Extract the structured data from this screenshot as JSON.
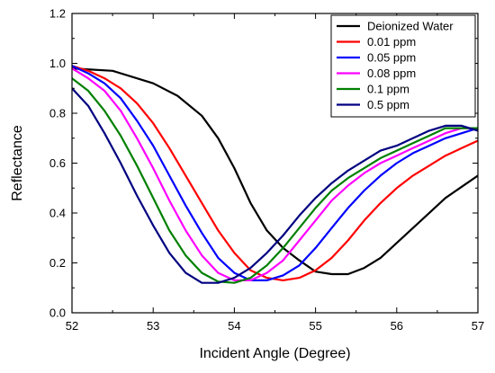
{
  "chart_data": {
    "type": "line",
    "xlabel": "Incident Angle (Degree)",
    "ylabel": "Reflectance",
    "xlim": [
      52,
      57
    ],
    "ylim": [
      0,
      1.2
    ],
    "x_ticks": [
      "52",
      "53",
      "54",
      "55",
      "56",
      "57"
    ],
    "y_ticks": [
      "0.0",
      "0.2",
      "0.4",
      "0.6",
      "0.8",
      "1.0",
      "1.2"
    ],
    "grid": false,
    "legend_position": "top-right",
    "series": [
      {
        "name": "Deionized Water",
        "color": "#000000",
        "x": [
          52.0,
          52.5,
          53.0,
          53.3,
          53.6,
          53.8,
          54.0,
          54.2,
          54.4,
          54.6,
          54.8,
          55.0,
          55.2,
          55.4,
          55.6,
          55.8,
          56.0,
          56.3,
          56.6,
          57.0
        ],
        "y": [
          0.98,
          0.97,
          0.92,
          0.87,
          0.79,
          0.7,
          0.58,
          0.44,
          0.33,
          0.26,
          0.21,
          0.165,
          0.155,
          0.155,
          0.18,
          0.22,
          0.28,
          0.37,
          0.46,
          0.55
        ]
      },
      {
        "name": "0.01 ppm",
        "color": "#ff0000",
        "x": [
          52.0,
          52.2,
          52.4,
          52.6,
          52.8,
          53.0,
          53.2,
          53.4,
          53.6,
          53.8,
          54.0,
          54.2,
          54.4,
          54.6,
          54.8,
          55.0,
          55.2,
          55.4,
          55.6,
          55.8,
          56.0,
          56.2,
          56.4,
          56.6,
          56.8,
          57.0
        ],
        "y": [
          0.99,
          0.97,
          0.94,
          0.9,
          0.84,
          0.76,
          0.66,
          0.55,
          0.44,
          0.33,
          0.24,
          0.17,
          0.14,
          0.13,
          0.14,
          0.17,
          0.22,
          0.29,
          0.37,
          0.44,
          0.5,
          0.55,
          0.59,
          0.63,
          0.66,
          0.69
        ]
      },
      {
        "name": "0.05 ppm",
        "color": "#0000ff",
        "x": [
          52.0,
          52.2,
          52.4,
          52.6,
          52.8,
          53.0,
          53.2,
          53.4,
          53.6,
          53.8,
          54.0,
          54.2,
          54.4,
          54.6,
          54.8,
          55.0,
          55.2,
          55.4,
          55.6,
          55.8,
          56.0,
          56.2,
          56.4,
          56.6,
          56.8,
          57.0
        ],
        "y": [
          0.99,
          0.96,
          0.92,
          0.86,
          0.77,
          0.67,
          0.55,
          0.43,
          0.32,
          0.22,
          0.16,
          0.13,
          0.13,
          0.15,
          0.19,
          0.26,
          0.34,
          0.42,
          0.49,
          0.55,
          0.6,
          0.64,
          0.67,
          0.7,
          0.72,
          0.74
        ]
      },
      {
        "name": "0.08 ppm",
        "color": "#ff00ff",
        "x": [
          52.0,
          52.2,
          52.4,
          52.6,
          52.8,
          53.0,
          53.2,
          53.4,
          53.6,
          53.8,
          54.0,
          54.2,
          54.4,
          54.6,
          54.8,
          55.0,
          55.2,
          55.4,
          55.6,
          55.8,
          56.0,
          56.2,
          56.4,
          56.6,
          56.8,
          57.0
        ],
        "y": [
          0.98,
          0.94,
          0.89,
          0.81,
          0.7,
          0.58,
          0.45,
          0.33,
          0.23,
          0.16,
          0.13,
          0.13,
          0.16,
          0.21,
          0.29,
          0.37,
          0.45,
          0.51,
          0.56,
          0.6,
          0.63,
          0.66,
          0.69,
          0.72,
          0.74,
          0.74
        ]
      },
      {
        "name": "0.1 ppm",
        "color": "#008000",
        "x": [
          52.0,
          52.2,
          52.4,
          52.6,
          52.8,
          53.0,
          53.2,
          53.4,
          53.6,
          53.8,
          54.0,
          54.2,
          54.4,
          54.6,
          54.8,
          55.0,
          55.2,
          55.4,
          55.6,
          55.8,
          56.0,
          56.2,
          56.4,
          56.6,
          56.8,
          57.0
        ],
        "y": [
          0.94,
          0.89,
          0.81,
          0.71,
          0.59,
          0.46,
          0.33,
          0.23,
          0.16,
          0.125,
          0.12,
          0.14,
          0.19,
          0.26,
          0.34,
          0.42,
          0.49,
          0.54,
          0.58,
          0.62,
          0.65,
          0.68,
          0.71,
          0.74,
          0.74,
          0.74
        ]
      },
      {
        "name": "0.5 ppm",
        "color": "#000080",
        "x": [
          52.0,
          52.2,
          52.4,
          52.6,
          52.8,
          53.0,
          53.2,
          53.4,
          53.6,
          53.8,
          54.0,
          54.2,
          54.4,
          54.6,
          54.8,
          55.0,
          55.2,
          55.4,
          55.6,
          55.8,
          56.0,
          56.2,
          56.4,
          56.6,
          56.8,
          57.0
        ],
        "y": [
          0.9,
          0.83,
          0.72,
          0.6,
          0.47,
          0.35,
          0.24,
          0.16,
          0.12,
          0.12,
          0.14,
          0.18,
          0.24,
          0.31,
          0.39,
          0.46,
          0.52,
          0.57,
          0.61,
          0.65,
          0.67,
          0.7,
          0.73,
          0.75,
          0.75,
          0.73
        ]
      }
    ]
  }
}
